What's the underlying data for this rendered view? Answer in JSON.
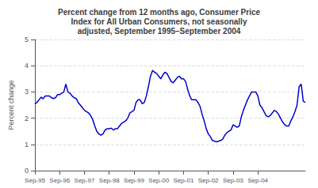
{
  "chart_data": {
    "type": "line",
    "title": "Percent change from 12 months ago, Consumer Price\nIndex for All Urban Consumers, not seasonally\nadjusted, September 1995–September 2004",
    "ylabel": "Percent change",
    "color": "#0000CC",
    "grid": true,
    "ylim": [
      0,
      5
    ],
    "yticks": [
      0,
      1,
      2,
      3,
      4,
      5
    ],
    "categories": [
      "Sep-95",
      null,
      null,
      null,
      null,
      null,
      null,
      null,
      null,
      null,
      null,
      null,
      "Sep-96",
      null,
      null,
      null,
      null,
      null,
      null,
      null,
      null,
      null,
      null,
      null,
      "Sep-97",
      null,
      null,
      null,
      null,
      null,
      null,
      null,
      null,
      null,
      null,
      null,
      "Sep-98",
      null,
      null,
      null,
      null,
      null,
      null,
      null,
      null,
      null,
      null,
      null,
      "Sep-99",
      null,
      null,
      null,
      null,
      null,
      null,
      null,
      null,
      null,
      null,
      null,
      "Sep-00",
      null,
      null,
      null,
      null,
      null,
      null,
      null,
      null,
      null,
      null,
      null,
      "Sep-01",
      null,
      null,
      null,
      null,
      null,
      null,
      null,
      null,
      null,
      null,
      null,
      "Sep-02",
      null,
      null,
      null,
      null,
      null,
      null,
      null,
      null,
      null,
      null,
      null,
      "Sep-03",
      null,
      null,
      null,
      null,
      null,
      null,
      null,
      null,
      null,
      null,
      null,
      "Sep-04",
      null,
      null,
      null,
      null,
      null,
      null,
      null,
      null,
      null,
      null,
      null,
      null,
      null,
      null,
      null,
      null,
      null,
      null,
      null,
      null,
      null,
      null,
      null
    ],
    "values": [
      2.54,
      2.6,
      2.7,
      2.8,
      2.74,
      2.85,
      2.85,
      2.85,
      2.78,
      2.75,
      2.78,
      2.9,
      2.9,
      2.95,
      3.0,
      3.3,
      3.0,
      2.95,
      2.85,
      2.78,
      2.75,
      2.6,
      2.5,
      2.4,
      2.3,
      2.25,
      2.2,
      2.1,
      1.95,
      1.7,
      1.5,
      1.4,
      1.35,
      1.4,
      1.55,
      1.6,
      1.6,
      1.62,
      1.55,
      1.6,
      1.6,
      1.7,
      1.8,
      1.85,
      1.9,
      2.0,
      2.2,
      2.25,
      2.3,
      2.6,
      2.7,
      2.7,
      2.55,
      2.6,
      2.85,
      3.2,
      3.6,
      3.82,
      3.75,
      3.7,
      3.6,
      3.5,
      3.65,
      3.75,
      3.7,
      3.55,
      3.4,
      3.35,
      3.45,
      3.55,
      3.6,
      3.5,
      3.5,
      3.4,
      3.1,
      2.85,
      2.7,
      2.7,
      2.7,
      2.6,
      2.45,
      2.15,
      1.9,
      1.6,
      1.4,
      1.3,
      1.15,
      1.12,
      1.1,
      1.12,
      1.15,
      1.2,
      1.35,
      1.45,
      1.5,
      1.55,
      1.75,
      1.7,
      1.65,
      1.7,
      2.05,
      2.3,
      2.5,
      2.7,
      2.85,
      3.0,
      3.0,
      3.0,
      2.85,
      2.5,
      2.4,
      2.25,
      2.1,
      2.05,
      2.1,
      2.2,
      2.3,
      2.25,
      2.15,
      2.0,
      1.85,
      1.75,
      1.7,
      1.7,
      1.9,
      2.05,
      2.25,
      2.5,
      3.2,
      3.3,
      2.65,
      2.6
    ]
  }
}
